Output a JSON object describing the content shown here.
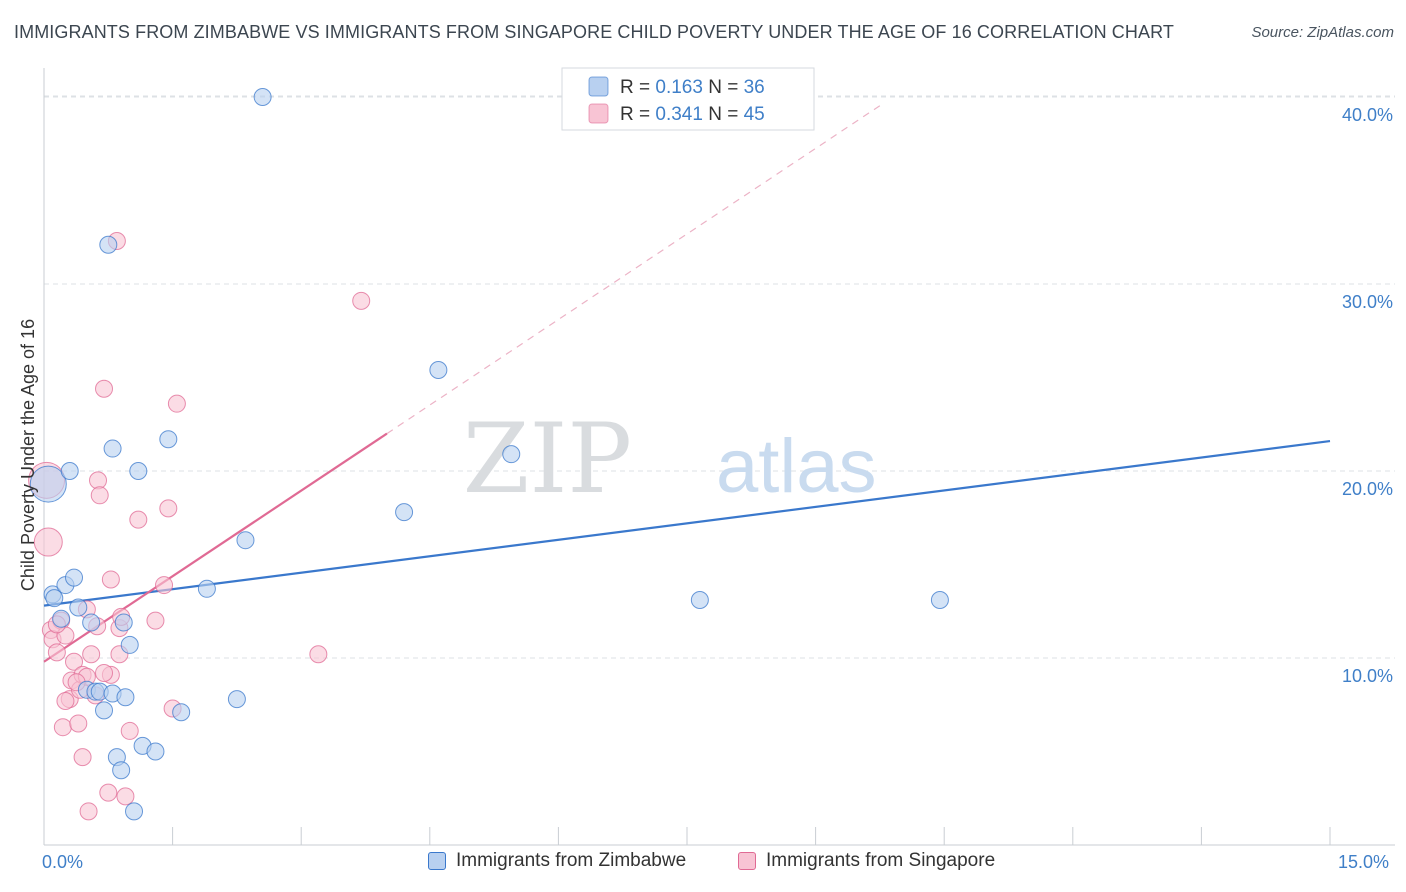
{
  "title": "IMMIGRANTS FROM ZIMBABWE VS IMMIGRANTS FROM SINGAPORE CHILD POVERTY UNDER THE AGE OF 16 CORRELATION CHART",
  "source": "Source: ZipAtlas.com",
  "watermark": {
    "zip": "ZIP",
    "atlas": "atlas"
  },
  "chart_data": {
    "type": "scatter",
    "title": "IMMIGRANTS FROM ZIMBABWE VS IMMIGRANTS FROM SINGAPORE CHILD POVERTY UNDER THE AGE OF 16 CORRELATION CHART",
    "xlabel": "",
    "ylabel": "Child Poverty Under the Age of 16",
    "xlim": [
      0,
      15
    ],
    "ylim": [
      0,
      40
    ],
    "x_tick_labels": [
      "0.0%",
      "15.0%"
    ],
    "y_ticks": [
      10,
      20,
      30,
      40
    ],
    "y_tick_labels": [
      "10.0%",
      "20.0%",
      "30.0%",
      "40.0%"
    ],
    "legend_position": "top-center",
    "stats": [
      {
        "r_label": "R = ",
        "r_value": "0.163",
        "n_label": "N = ",
        "n_value": "36"
      },
      {
        "r_label": "R = ",
        "r_value": "0.341",
        "n_label": "N = ",
        "n_value": "45"
      }
    ],
    "series": [
      {
        "name": "Immigrants from Zimbabwe",
        "color": "#3a78cc",
        "fill": "#b8d0f0",
        "trend": {
          "x0": 0,
          "y0": 12.8,
          "x1": 15,
          "y1": 21.6,
          "dashed_from": null
        },
        "points": [
          {
            "x": 0.05,
            "y": 19.3,
            "size": 18
          },
          {
            "x": 0.1,
            "y": 13.4
          },
          {
            "x": 0.12,
            "y": 13.2
          },
          {
            "x": 0.2,
            "y": 12.1
          },
          {
            "x": 0.25,
            "y": 13.9
          },
          {
            "x": 0.3,
            "y": 20.0
          },
          {
            "x": 0.35,
            "y": 14.3
          },
          {
            "x": 0.4,
            "y": 12.7
          },
          {
            "x": 0.5,
            "y": 8.3
          },
          {
            "x": 0.55,
            "y": 11.9
          },
          {
            "x": 0.6,
            "y": 8.2
          },
          {
            "x": 0.65,
            "y": 8.2
          },
          {
            "x": 0.7,
            "y": 7.2
          },
          {
            "x": 0.75,
            "y": 32.1
          },
          {
            "x": 0.8,
            "y": 21.2
          },
          {
            "x": 0.8,
            "y": 8.1
          },
          {
            "x": 0.85,
            "y": 4.7
          },
          {
            "x": 0.9,
            "y": 4.0
          },
          {
            "x": 0.93,
            "y": 11.9
          },
          {
            "x": 0.95,
            "y": 7.9
          },
          {
            "x": 1.0,
            "y": 10.7
          },
          {
            "x": 1.05,
            "y": 1.8
          },
          {
            "x": 1.1,
            "y": 20.0
          },
          {
            "x": 1.15,
            "y": 5.3
          },
          {
            "x": 1.3,
            "y": 5.0
          },
          {
            "x": 1.45,
            "y": 21.7
          },
          {
            "x": 1.6,
            "y": 7.1
          },
          {
            "x": 1.9,
            "y": 13.7
          },
          {
            "x": 2.25,
            "y": 7.8
          },
          {
            "x": 2.35,
            "y": 16.3
          },
          {
            "x": 2.55,
            "y": 40.0
          },
          {
            "x": 4.2,
            "y": 17.8
          },
          {
            "x": 4.6,
            "y": 25.4
          },
          {
            "x": 5.45,
            "y": 20.9
          },
          {
            "x": 7.65,
            "y": 13.1
          },
          {
            "x": 10.45,
            "y": 13.1
          }
        ]
      },
      {
        "name": "Immigrants from Singapore",
        "color": "#e06a94",
        "fill": "#f8c4d4",
        "trend": {
          "x0": 0,
          "y0": 9.8,
          "x1": 4.0,
          "y1": 22.0,
          "dashed_to_x": 9.8
        },
        "points": [
          {
            "x": 0.03,
            "y": 19.5,
            "size": 18
          },
          {
            "x": 0.05,
            "y": 16.2,
            "size": 14
          },
          {
            "x": 0.08,
            "y": 11.5
          },
          {
            "x": 0.1,
            "y": 11.0
          },
          {
            "x": 0.15,
            "y": 10.3
          },
          {
            "x": 0.2,
            "y": 12.0
          },
          {
            "x": 0.22,
            "y": 6.3
          },
          {
            "x": 0.25,
            "y": 11.2
          },
          {
            "x": 0.3,
            "y": 7.8
          },
          {
            "x": 0.32,
            "y": 8.8
          },
          {
            "x": 0.35,
            "y": 9.8
          },
          {
            "x": 0.4,
            "y": 6.5
          },
          {
            "x": 0.42,
            "y": 8.3
          },
          {
            "x": 0.45,
            "y": 9.1
          },
          {
            "x": 0.45,
            "y": 4.7
          },
          {
            "x": 0.5,
            "y": 12.6
          },
          {
            "x": 0.5,
            "y": 9.0
          },
          {
            "x": 0.55,
            "y": 10.2
          },
          {
            "x": 0.52,
            "y": 1.8
          },
          {
            "x": 0.6,
            "y": 8.0
          },
          {
            "x": 0.62,
            "y": 11.7
          },
          {
            "x": 0.63,
            "y": 19.5
          },
          {
            "x": 0.65,
            "y": 18.7
          },
          {
            "x": 0.7,
            "y": 24.4
          },
          {
            "x": 0.75,
            "y": 2.8
          },
          {
            "x": 0.78,
            "y": 9.1
          },
          {
            "x": 0.78,
            "y": 14.2
          },
          {
            "x": 0.85,
            "y": 32.3
          },
          {
            "x": 0.88,
            "y": 11.6
          },
          {
            "x": 0.88,
            "y": 10.2
          },
          {
            "x": 0.9,
            "y": 12.2
          },
          {
            "x": 0.95,
            "y": 2.6
          },
          {
            "x": 1.0,
            "y": 6.1
          },
          {
            "x": 1.1,
            "y": 17.4
          },
          {
            "x": 1.3,
            "y": 12.0
          },
          {
            "x": 1.45,
            "y": 18.0
          },
          {
            "x": 1.5,
            "y": 7.3
          },
          {
            "x": 1.55,
            "y": 23.6
          },
          {
            "x": 1.4,
            "y": 13.9
          },
          {
            "x": 0.15,
            "y": 11.8
          },
          {
            "x": 0.38,
            "y": 8.7
          },
          {
            "x": 0.7,
            "y": 9.2
          },
          {
            "x": 0.25,
            "y": 7.7
          },
          {
            "x": 3.2,
            "y": 10.2
          },
          {
            "x": 3.7,
            "y": 29.1
          }
        ]
      }
    ]
  }
}
